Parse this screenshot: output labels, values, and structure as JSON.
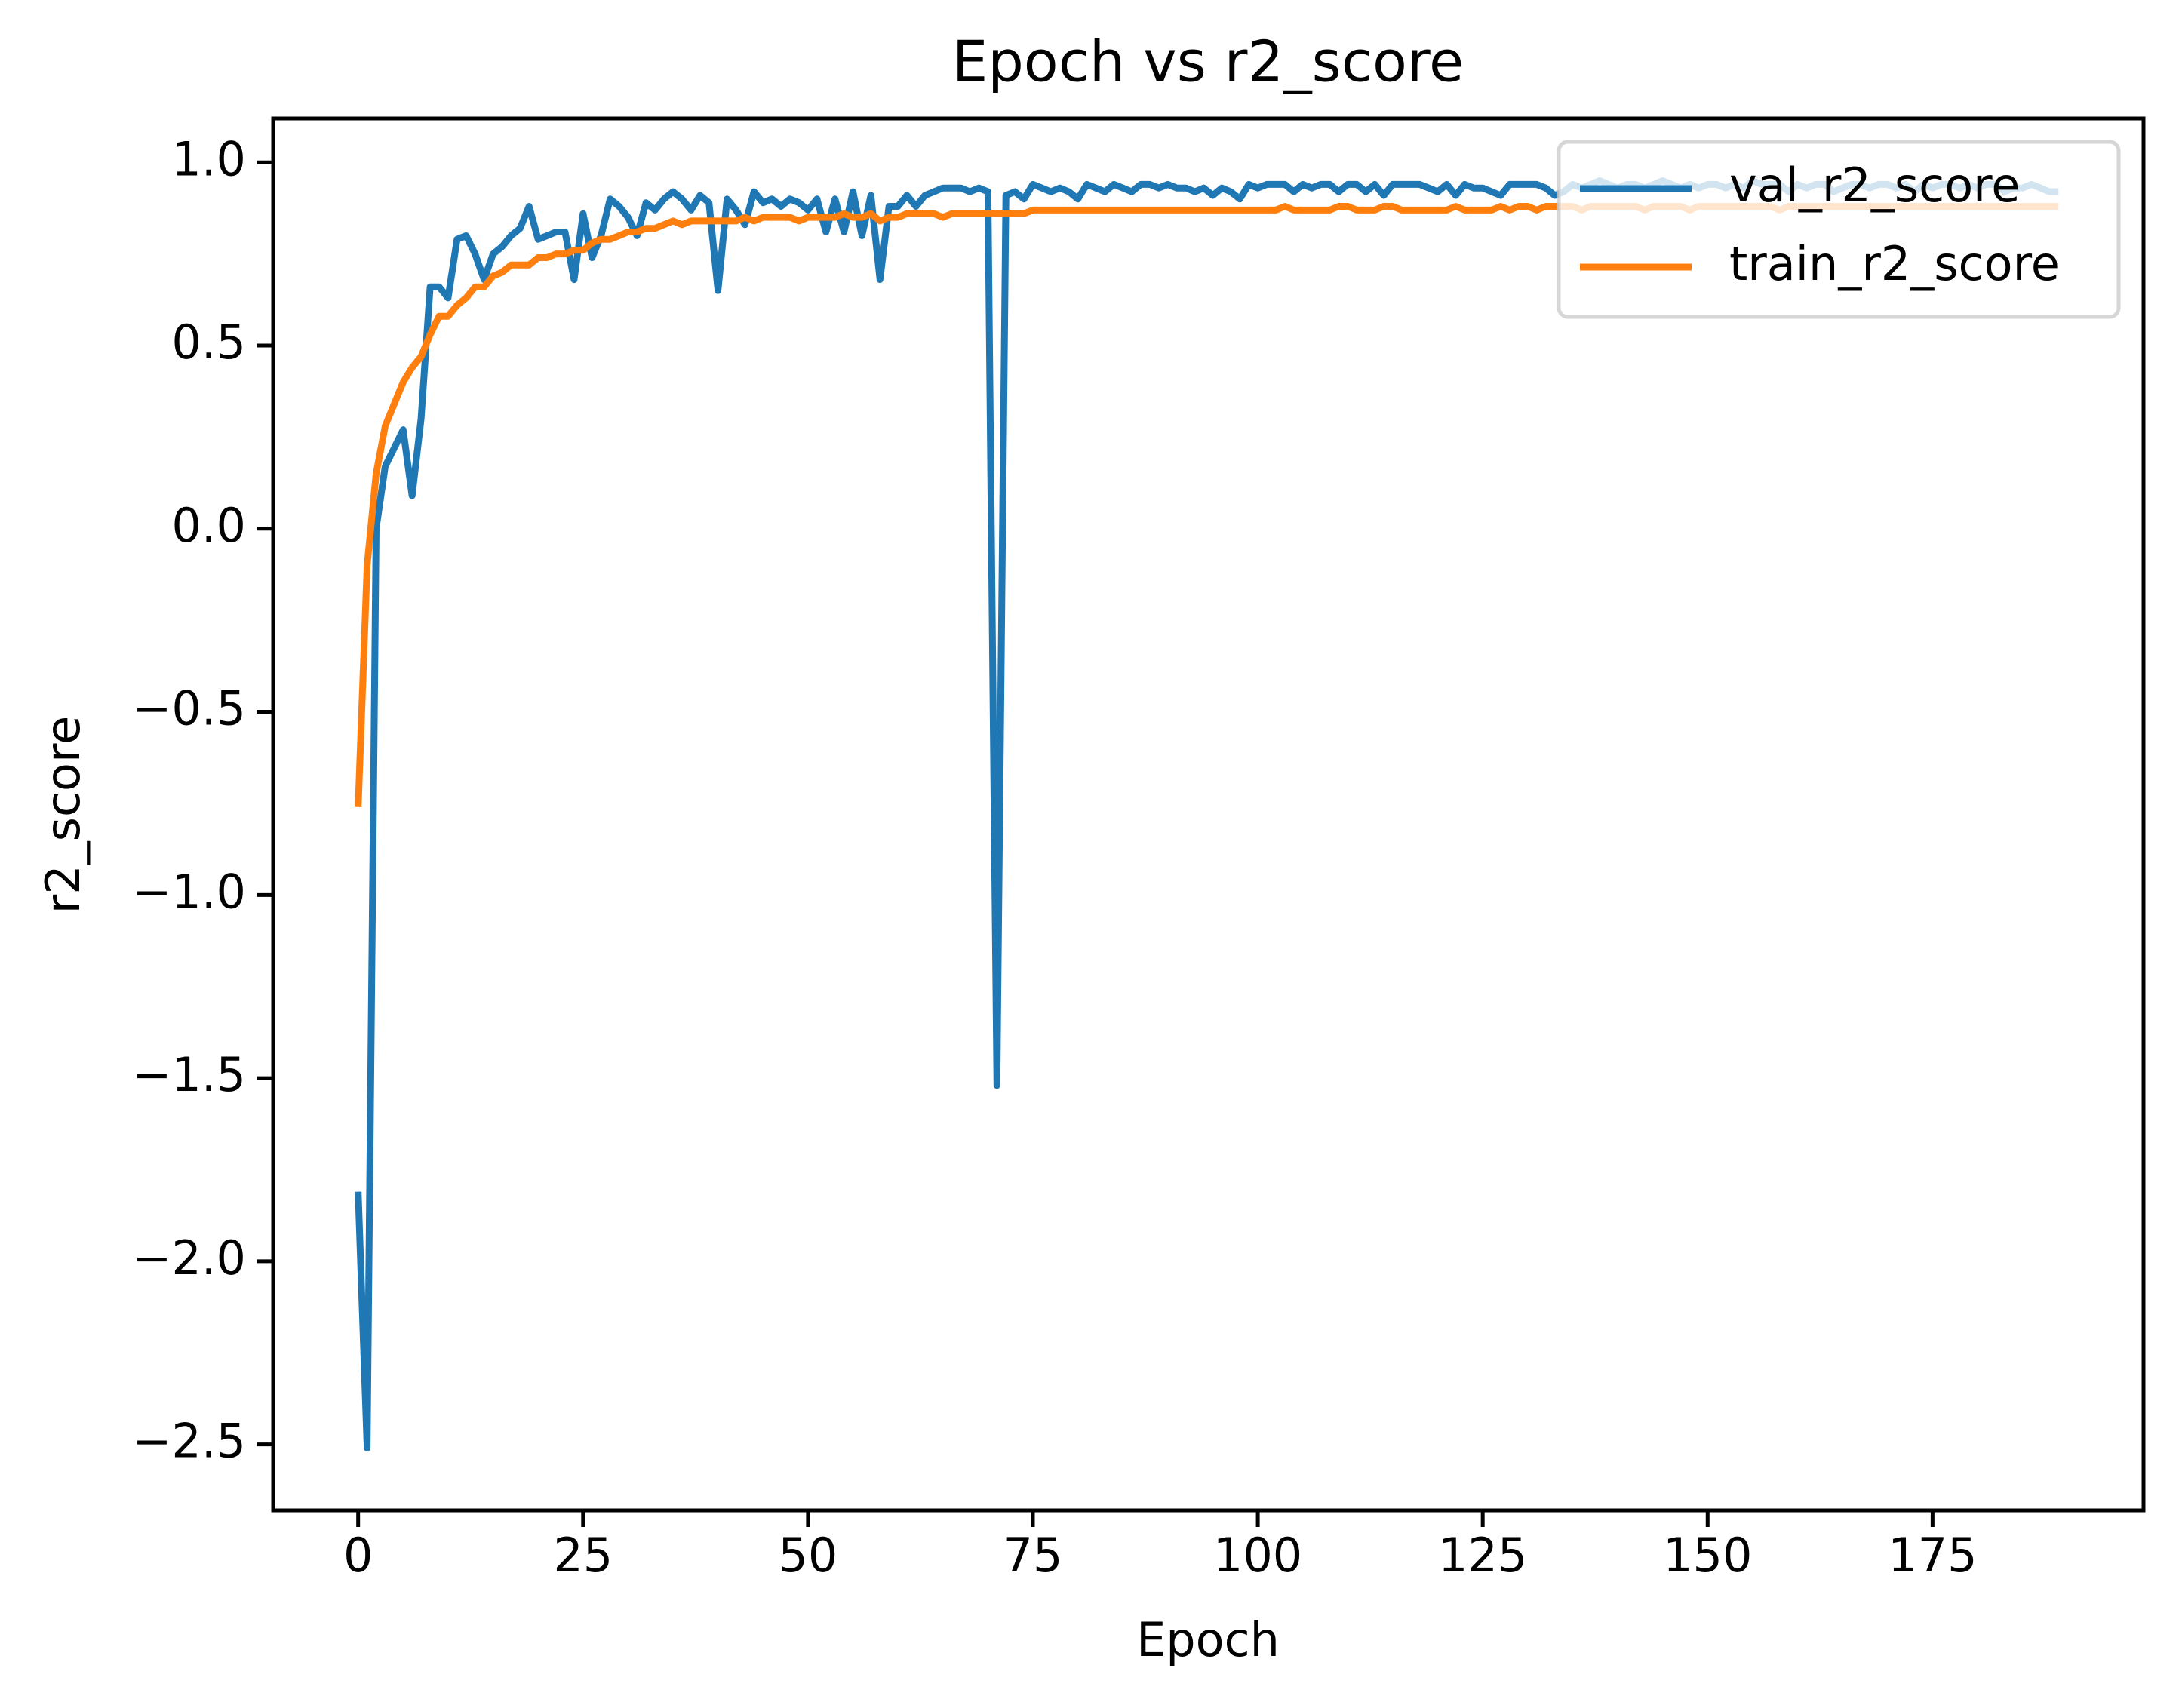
{
  "chart_data": {
    "type": "line",
    "title": "Epoch vs r2_score",
    "x_label": "Epoch",
    "y_label": "r2_score",
    "x": [
      0,
      1,
      2,
      3,
      4,
      5,
      6,
      7,
      8,
      9,
      10,
      11,
      12,
      13,
      14,
      15,
      16,
      17,
      18,
      19,
      20,
      21,
      22,
      23,
      24,
      25,
      26,
      27,
      28,
      29,
      30,
      31,
      32,
      33,
      34,
      35,
      36,
      37,
      38,
      39,
      40,
      41,
      42,
      43,
      44,
      45,
      46,
      47,
      48,
      49,
      50,
      51,
      52,
      53,
      54,
      55,
      56,
      57,
      58,
      59,
      60,
      61,
      62,
      63,
      64,
      65,
      66,
      67,
      68,
      69,
      70,
      71,
      72,
      73,
      74,
      75,
      76,
      77,
      78,
      79,
      80,
      81,
      82,
      83,
      84,
      85,
      86,
      87,
      88,
      89,
      90,
      91,
      92,
      93,
      94,
      95,
      96,
      97,
      98,
      99,
      100,
      101,
      102,
      103,
      104,
      105,
      106,
      107,
      108,
      109,
      110,
      111,
      112,
      113,
      114,
      115,
      116,
      117,
      118,
      119,
      120,
      121,
      122,
      123,
      124,
      125,
      126,
      127,
      128,
      129,
      130,
      131,
      132,
      133,
      134,
      135,
      136,
      137,
      138,
      139,
      140,
      141,
      142,
      143,
      144,
      145,
      146,
      147,
      148,
      149,
      150,
      151,
      152,
      153,
      154,
      155,
      156,
      157,
      158,
      159,
      160,
      161,
      162,
      163,
      164,
      165,
      166,
      167,
      168,
      169,
      170,
      171,
      172,
      173,
      174,
      175,
      176,
      177,
      178,
      179,
      180,
      181,
      182,
      183,
      184,
      185,
      186,
      187,
      188,
      189
    ],
    "series": [
      {
        "name": "val_r2_score",
        "color": "#1f77b4",
        "values": [
          -1.81,
          -2.51,
          0.0,
          0.17,
          0.22,
          0.27,
          0.09,
          0.3,
          0.66,
          0.66,
          0.63,
          0.79,
          0.8,
          0.75,
          0.68,
          0.75,
          0.77,
          0.8,
          0.82,
          0.88,
          0.79,
          0.8,
          0.81,
          0.81,
          0.68,
          0.86,
          0.74,
          0.8,
          0.9,
          0.88,
          0.85,
          0.8,
          0.89,
          0.87,
          0.9,
          0.92,
          0.9,
          0.87,
          0.91,
          0.89,
          0.65,
          0.9,
          0.87,
          0.83,
          0.92,
          0.89,
          0.9,
          0.88,
          0.9,
          0.89,
          0.87,
          0.9,
          0.81,
          0.9,
          0.81,
          0.92,
          0.8,
          0.91,
          0.68,
          0.88,
          0.88,
          0.91,
          0.88,
          0.91,
          0.92,
          0.93,
          0.93,
          0.93,
          0.92,
          0.93,
          0.92,
          -1.52,
          0.91,
          0.92,
          0.9,
          0.94,
          0.93,
          0.92,
          0.93,
          0.92,
          0.9,
          0.94,
          0.93,
          0.92,
          0.94,
          0.93,
          0.92,
          0.94,
          0.94,
          0.93,
          0.94,
          0.93,
          0.93,
          0.92,
          0.93,
          0.91,
          0.93,
          0.92,
          0.9,
          0.94,
          0.93,
          0.94,
          0.94,
          0.94,
          0.92,
          0.94,
          0.93,
          0.94,
          0.94,
          0.92,
          0.94,
          0.94,
          0.92,
          0.94,
          0.91,
          0.94,
          0.94,
          0.94,
          0.94,
          0.93,
          0.92,
          0.94,
          0.91,
          0.94,
          0.93,
          0.93,
          0.92,
          0.91,
          0.94,
          0.94,
          0.94,
          0.94,
          0.93,
          0.91,
          0.92,
          0.94,
          0.93,
          0.94,
          0.95,
          0.94,
          0.93,
          0.94,
          0.94,
          0.93,
          0.94,
          0.95,
          0.94,
          0.93,
          0.94,
          0.93,
          0.94,
          0.94,
          0.93,
          0.94,
          0.93,
          0.95,
          0.94,
          0.94,
          0.94,
          0.92,
          0.94,
          0.93,
          0.94,
          0.94,
          0.92,
          0.93,
          0.94,
          0.94,
          0.93,
          0.94,
          0.94,
          0.93,
          0.94,
          0.92,
          0.94,
          0.93,
          0.94,
          0.94,
          0.93,
          0.94,
          0.93,
          0.94,
          0.94,
          0.92,
          0.93,
          0.93,
          0.94,
          0.93,
          0.92,
          0.92
        ]
      },
      {
        "name": "train_r2_score",
        "color": "#ff7f0e",
        "values": [
          -0.76,
          -0.1,
          0.15,
          0.28,
          0.34,
          0.4,
          0.44,
          0.47,
          0.53,
          0.58,
          0.58,
          0.61,
          0.63,
          0.66,
          0.66,
          0.69,
          0.7,
          0.72,
          0.72,
          0.72,
          0.74,
          0.74,
          0.75,
          0.75,
          0.76,
          0.76,
          0.78,
          0.79,
          0.79,
          0.8,
          0.81,
          0.81,
          0.82,
          0.82,
          0.83,
          0.84,
          0.83,
          0.84,
          0.84,
          0.84,
          0.84,
          0.84,
          0.84,
          0.85,
          0.84,
          0.85,
          0.85,
          0.85,
          0.85,
          0.84,
          0.85,
          0.85,
          0.85,
          0.85,
          0.86,
          0.85,
          0.85,
          0.86,
          0.84,
          0.85,
          0.85,
          0.86,
          0.86,
          0.86,
          0.86,
          0.85,
          0.86,
          0.86,
          0.86,
          0.86,
          0.86,
          0.86,
          0.86,
          0.86,
          0.86,
          0.87,
          0.87,
          0.87,
          0.87,
          0.87,
          0.87,
          0.87,
          0.87,
          0.87,
          0.87,
          0.87,
          0.87,
          0.87,
          0.87,
          0.87,
          0.87,
          0.87,
          0.87,
          0.87,
          0.87,
          0.87,
          0.87,
          0.87,
          0.87,
          0.87,
          0.87,
          0.87,
          0.87,
          0.88,
          0.87,
          0.87,
          0.87,
          0.87,
          0.87,
          0.88,
          0.88,
          0.87,
          0.87,
          0.87,
          0.88,
          0.88,
          0.87,
          0.87,
          0.87,
          0.87,
          0.87,
          0.87,
          0.88,
          0.87,
          0.87,
          0.87,
          0.87,
          0.88,
          0.87,
          0.88,
          0.88,
          0.87,
          0.88,
          0.88,
          0.88,
          0.88,
          0.87,
          0.88,
          0.88,
          0.88,
          0.88,
          0.88,
          0.88,
          0.87,
          0.88,
          0.88,
          0.88,
          0.88,
          0.87,
          0.88,
          0.88,
          0.88,
          0.88,
          0.88,
          0.88,
          0.88,
          0.88,
          0.88,
          0.87,
          0.88,
          0.88,
          0.88,
          0.88,
          0.88,
          0.88,
          0.88,
          0.88,
          0.88,
          0.88,
          0.88,
          0.88,
          0.88,
          0.88,
          0.88,
          0.88,
          0.88,
          0.88,
          0.88,
          0.88,
          0.88,
          0.88,
          0.88,
          0.88,
          0.88,
          0.88,
          0.88,
          0.88,
          0.88,
          0.88,
          0.88
        ]
      }
    ],
    "xlim": [
      -9.45,
      198.45
    ],
    "xticks": [
      0,
      25,
      50,
      75,
      100,
      125,
      150,
      175
    ],
    "ylim": [
      -2.68,
      1.12
    ],
    "yticks": [
      {
        "value": -2.5,
        "label": "−2.5"
      },
      {
        "value": -2.0,
        "label": "−2.0"
      },
      {
        "value": -1.5,
        "label": "−1.5"
      },
      {
        "value": -1.0,
        "label": "−1.0"
      },
      {
        "value": -0.5,
        "label": "−0.5"
      },
      {
        "value": 0.0,
        "label": "0.0"
      },
      {
        "value": 0.5,
        "label": "0.5"
      },
      {
        "value": 1.0,
        "label": "1.0"
      }
    ],
    "grid": false,
    "legend": "upper right"
  }
}
